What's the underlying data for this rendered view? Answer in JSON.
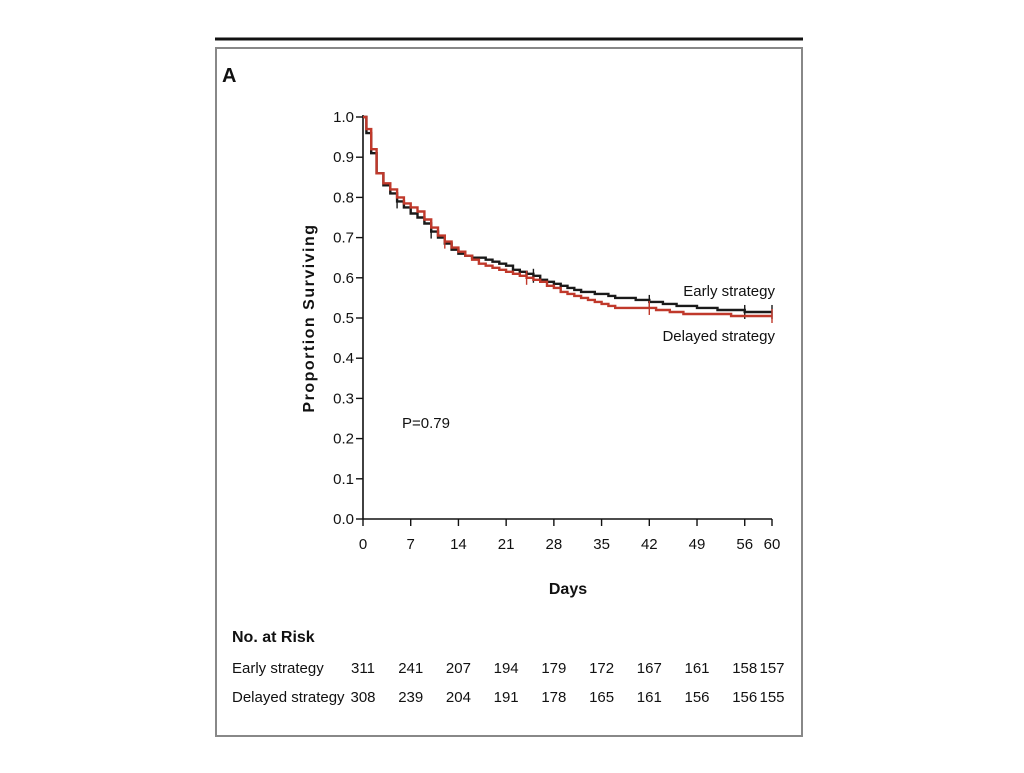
{
  "figure": {
    "panel_letter": "A",
    "p_value_label": "P=0.79"
  },
  "colors": {
    "frame": "#888888",
    "top_rule": "#111111",
    "axis": "#111111",
    "early": "#1a1a1a",
    "delayed": "#c0392b"
  },
  "chart_data": {
    "type": "line",
    "title": "",
    "xlabel": "Days",
    "ylabel": "Proportion Surviving",
    "xlim": [
      0,
      60
    ],
    "ylim": [
      0,
      1.0
    ],
    "x_ticks": [
      0,
      7,
      14,
      21,
      28,
      35,
      42,
      49,
      56,
      60
    ],
    "y_ticks": [
      0.0,
      0.1,
      0.2,
      0.3,
      0.4,
      0.5,
      0.6,
      0.7,
      0.8,
      0.9,
      1.0
    ],
    "y_tick_labels": [
      "0.0",
      "0.1",
      "0.2",
      "0.3",
      "0.4",
      "0.5",
      "0.6",
      "0.7",
      "0.8",
      "0.9",
      "1.0"
    ],
    "step": true,
    "grid": false,
    "legend": "direct-labels-right",
    "series": [
      {
        "name": "Early strategy",
        "x": [
          0,
          0.5,
          1.2,
          2,
          3,
          4,
          5,
          6,
          7,
          8,
          9,
          10,
          11,
          12,
          13,
          14,
          15,
          16,
          17,
          18,
          19,
          20,
          21,
          22,
          23,
          24,
          25,
          26,
          27,
          28,
          29,
          30,
          31,
          32,
          33,
          34,
          35,
          36,
          37,
          38,
          39,
          40,
          41,
          42,
          43,
          44,
          45,
          46,
          47,
          48,
          49,
          50,
          51,
          52,
          53,
          54,
          55,
          56,
          57,
          58,
          59,
          60
        ],
        "y": [
          1.0,
          0.96,
          0.91,
          0.86,
          0.83,
          0.81,
          0.79,
          0.775,
          0.76,
          0.75,
          0.735,
          0.715,
          0.7,
          0.685,
          0.67,
          0.66,
          0.655,
          0.65,
          0.65,
          0.645,
          0.64,
          0.635,
          0.63,
          0.62,
          0.615,
          0.61,
          0.605,
          0.595,
          0.59,
          0.585,
          0.58,
          0.575,
          0.57,
          0.565,
          0.565,
          0.56,
          0.56,
          0.555,
          0.55,
          0.55,
          0.55,
          0.545,
          0.545,
          0.54,
          0.54,
          0.535,
          0.535,
          0.53,
          0.53,
          0.53,
          0.525,
          0.525,
          0.525,
          0.52,
          0.52,
          0.52,
          0.52,
          0.515,
          0.515,
          0.515,
          0.515,
          0.515
        ],
        "censor_x": [
          5,
          10,
          25,
          42,
          56,
          60
        ]
      },
      {
        "name": "Delayed strategy",
        "x": [
          0,
          0.5,
          1.2,
          2,
          3,
          4,
          5,
          6,
          7,
          8,
          9,
          10,
          11,
          12,
          13,
          14,
          15,
          16,
          17,
          18,
          19,
          20,
          21,
          22,
          23,
          24,
          25,
          26,
          27,
          28,
          29,
          30,
          31,
          32,
          33,
          34,
          35,
          36,
          37,
          38,
          39,
          40,
          41,
          42,
          43,
          44,
          45,
          46,
          47,
          48,
          49,
          50,
          51,
          52,
          53,
          54,
          55,
          56,
          57,
          58,
          59,
          60
        ],
        "y": [
          1.0,
          0.97,
          0.92,
          0.86,
          0.835,
          0.82,
          0.8,
          0.785,
          0.775,
          0.765,
          0.745,
          0.725,
          0.705,
          0.69,
          0.675,
          0.665,
          0.655,
          0.645,
          0.635,
          0.63,
          0.625,
          0.62,
          0.615,
          0.61,
          0.605,
          0.6,
          0.595,
          0.59,
          0.58,
          0.575,
          0.565,
          0.56,
          0.555,
          0.55,
          0.545,
          0.54,
          0.535,
          0.53,
          0.525,
          0.525,
          0.525,
          0.525,
          0.525,
          0.525,
          0.52,
          0.52,
          0.515,
          0.515,
          0.51,
          0.51,
          0.51,
          0.51,
          0.51,
          0.51,
          0.51,
          0.505,
          0.505,
          0.505,
          0.505,
          0.505,
          0.505,
          0.505
        ],
        "censor_x": [
          12,
          24,
          42,
          60
        ]
      }
    ]
  },
  "risk_table": {
    "title": "No. at Risk",
    "columns": [
      0,
      7,
      14,
      21,
      28,
      35,
      42,
      49,
      56,
      60
    ],
    "rows": [
      {
        "label": "Early strategy",
        "values": [
          "311",
          "241",
          "207",
          "194",
          "179",
          "172",
          "167",
          "161",
          "158",
          "157"
        ]
      },
      {
        "label": "Delayed strategy",
        "values": [
          "308",
          "239",
          "204",
          "191",
          "178",
          "165",
          "161",
          "156",
          "156",
          "155"
        ]
      }
    ]
  }
}
